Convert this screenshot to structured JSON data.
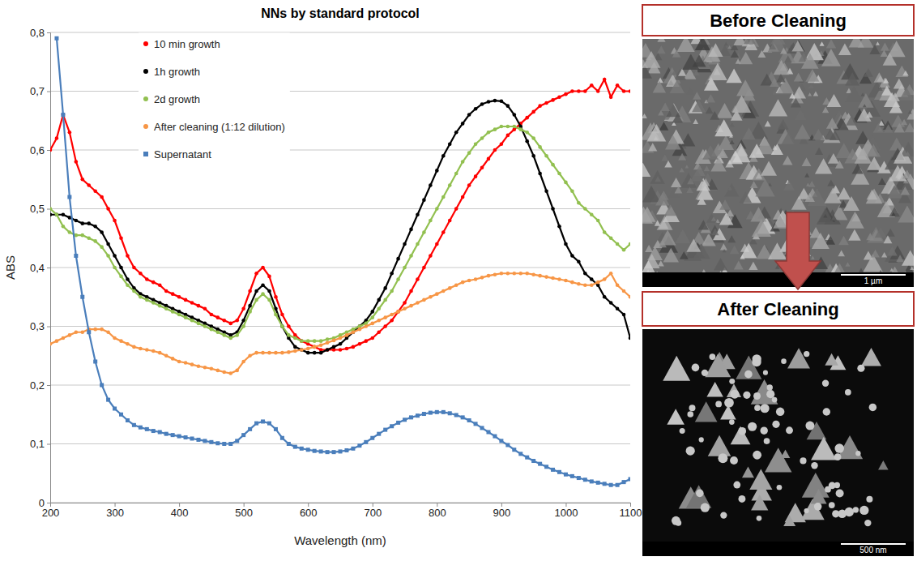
{
  "chart_data": {
    "type": "scatter",
    "title": "NNs by standard protocol",
    "x_label": "Wavelength (nm)",
    "y_label": "ABS",
    "x": [
      200,
      210,
      220,
      230,
      240,
      250,
      260,
      270,
      280,
      290,
      300,
      310,
      320,
      330,
      340,
      350,
      360,
      370,
      380,
      390,
      400,
      410,
      420,
      430,
      440,
      450,
      460,
      470,
      480,
      490,
      500,
      510,
      520,
      530,
      540,
      550,
      560,
      570,
      580,
      590,
      600,
      610,
      620,
      630,
      640,
      650,
      660,
      670,
      680,
      690,
      700,
      710,
      720,
      730,
      740,
      750,
      760,
      770,
      780,
      790,
      800,
      810,
      820,
      830,
      840,
      850,
      860,
      870,
      880,
      890,
      900,
      910,
      920,
      930,
      940,
      950,
      960,
      970,
      980,
      990,
      1000,
      1010,
      1020,
      1030,
      1040,
      1050,
      1060,
      1070,
      1080,
      1090,
      1100
    ],
    "series": [
      {
        "name": "10 min growth",
        "color": "#ff0000",
        "marker": "circle",
        "line_style": "solid",
        "values": [
          0.6,
          0.62,
          0.66,
          0.63,
          0.58,
          0.55,
          0.54,
          0.53,
          0.52,
          0.5,
          0.48,
          0.45,
          0.42,
          0.4,
          0.39,
          0.38,
          0.375,
          0.37,
          0.36,
          0.355,
          0.35,
          0.345,
          0.34,
          0.335,
          0.33,
          0.32,
          0.315,
          0.31,
          0.305,
          0.31,
          0.33,
          0.36,
          0.39,
          0.4,
          0.385,
          0.35,
          0.32,
          0.3,
          0.285,
          0.275,
          0.27,
          0.265,
          0.26,
          0.26,
          0.26,
          0.26,
          0.262,
          0.265,
          0.27,
          0.275,
          0.28,
          0.29,
          0.3,
          0.31,
          0.325,
          0.34,
          0.36,
          0.38,
          0.4,
          0.42,
          0.44,
          0.46,
          0.48,
          0.5,
          0.52,
          0.54,
          0.555,
          0.57,
          0.585,
          0.6,
          0.61,
          0.625,
          0.635,
          0.645,
          0.655,
          0.665,
          0.675,
          0.68,
          0.685,
          0.69,
          0.695,
          0.7,
          0.7,
          0.7,
          0.71,
          0.7,
          0.72,
          0.69,
          0.71,
          0.7,
          0.7
        ]
      },
      {
        "name": "1h growth",
        "color": "#000000",
        "marker": "circle",
        "line_style": "solid",
        "values": [
          0.49,
          0.49,
          0.49,
          0.485,
          0.48,
          0.475,
          0.475,
          0.47,
          0.46,
          0.44,
          0.42,
          0.4,
          0.38,
          0.365,
          0.355,
          0.35,
          0.345,
          0.34,
          0.335,
          0.33,
          0.325,
          0.32,
          0.315,
          0.31,
          0.305,
          0.3,
          0.295,
          0.29,
          0.285,
          0.29,
          0.31,
          0.335,
          0.36,
          0.37,
          0.36,
          0.33,
          0.3,
          0.28,
          0.265,
          0.26,
          0.255,
          0.255,
          0.255,
          0.26,
          0.265,
          0.27,
          0.28,
          0.29,
          0.3,
          0.31,
          0.325,
          0.345,
          0.365,
          0.39,
          0.415,
          0.44,
          0.465,
          0.49,
          0.515,
          0.54,
          0.565,
          0.59,
          0.61,
          0.63,
          0.645,
          0.66,
          0.67,
          0.678,
          0.682,
          0.684,
          0.683,
          0.675,
          0.66,
          0.64,
          0.615,
          0.59,
          0.56,
          0.53,
          0.5,
          0.47,
          0.44,
          0.42,
          0.41,
          0.39,
          0.38,
          0.37,
          0.35,
          0.34,
          0.33,
          0.32,
          0.28
        ]
      },
      {
        "name": "2d growth",
        "color": "#92c050",
        "marker": "circle",
        "line_style": "solid",
        "values": [
          0.5,
          0.49,
          0.47,
          0.46,
          0.455,
          0.455,
          0.45,
          0.445,
          0.435,
          0.42,
          0.4,
          0.385,
          0.37,
          0.36,
          0.35,
          0.345,
          0.34,
          0.335,
          0.33,
          0.325,
          0.32,
          0.315,
          0.31,
          0.305,
          0.3,
          0.295,
          0.29,
          0.285,
          0.28,
          0.285,
          0.3,
          0.325,
          0.345,
          0.355,
          0.345,
          0.32,
          0.3,
          0.285,
          0.28,
          0.275,
          0.275,
          0.275,
          0.275,
          0.278,
          0.28,
          0.285,
          0.29,
          0.295,
          0.3,
          0.305,
          0.315,
          0.33,
          0.345,
          0.36,
          0.38,
          0.4,
          0.42,
          0.44,
          0.46,
          0.48,
          0.5,
          0.52,
          0.54,
          0.56,
          0.58,
          0.595,
          0.61,
          0.62,
          0.63,
          0.635,
          0.64,
          0.64,
          0.64,
          0.635,
          0.63,
          0.62,
          0.605,
          0.59,
          0.575,
          0.56,
          0.545,
          0.53,
          0.51,
          0.5,
          0.49,
          0.48,
          0.46,
          0.45,
          0.44,
          0.43,
          0.44
        ]
      },
      {
        "name": "After cleaning (1:12 dilution)",
        "color": "#f79646",
        "marker": "circle",
        "line_style": "solid",
        "values": [
          0.27,
          0.275,
          0.28,
          0.285,
          0.29,
          0.29,
          0.295,
          0.295,
          0.295,
          0.29,
          0.28,
          0.275,
          0.27,
          0.265,
          0.262,
          0.26,
          0.258,
          0.255,
          0.25,
          0.245,
          0.24,
          0.238,
          0.235,
          0.232,
          0.23,
          0.228,
          0.225,
          0.222,
          0.22,
          0.225,
          0.24,
          0.25,
          0.255,
          0.255,
          0.255,
          0.255,
          0.255,
          0.256,
          0.258,
          0.26,
          0.262,
          0.265,
          0.268,
          0.272,
          0.276,
          0.28,
          0.285,
          0.29,
          0.295,
          0.3,
          0.305,
          0.31,
          0.315,
          0.32,
          0.325,
          0.33,
          0.335,
          0.34,
          0.345,
          0.35,
          0.355,
          0.36,
          0.365,
          0.37,
          0.375,
          0.378,
          0.38,
          0.383,
          0.386,
          0.388,
          0.39,
          0.39,
          0.39,
          0.39,
          0.39,
          0.388,
          0.386,
          0.384,
          0.382,
          0.38,
          0.378,
          0.375,
          0.372,
          0.37,
          0.37,
          0.375,
          0.38,
          0.39,
          0.37,
          0.36,
          0.35
        ]
      },
      {
        "name": "Supernatant",
        "color": "#4a7ebb",
        "marker": "square",
        "line_style": "solid",
        "values": [
          null,
          0.79,
          0.66,
          0.52,
          0.42,
          0.35,
          0.29,
          0.24,
          0.2,
          0.175,
          0.16,
          0.15,
          0.14,
          0.132,
          0.128,
          0.125,
          0.122,
          0.12,
          0.117,
          0.115,
          0.113,
          0.111,
          0.109,
          0.107,
          0.105,
          0.103,
          0.101,
          0.1,
          0.1,
          0.105,
          0.115,
          0.125,
          0.135,
          0.138,
          0.135,
          0.125,
          0.11,
          0.1,
          0.095,
          0.092,
          0.09,
          0.088,
          0.087,
          0.086,
          0.086,
          0.087,
          0.089,
          0.092,
          0.097,
          0.103,
          0.11,
          0.117,
          0.124,
          0.13,
          0.136,
          0.141,
          0.145,
          0.148,
          0.151,
          0.153,
          0.154,
          0.154,
          0.152,
          0.149,
          0.145,
          0.14,
          0.134,
          0.127,
          0.12,
          0.113,
          0.105,
          0.098,
          0.09,
          0.083,
          0.077,
          0.071,
          0.066,
          0.061,
          0.056,
          0.052,
          0.048,
          0.045,
          0.042,
          0.039,
          0.036,
          0.034,
          0.032,
          0.03,
          0.03,
          0.035,
          0.04
        ]
      }
    ],
    "xlim": [
      200,
      1100
    ],
    "xticks": [
      200,
      300,
      400,
      500,
      600,
      700,
      800,
      900,
      1000,
      1100
    ],
    "ylim": [
      0,
      0.8
    ],
    "yticks": [
      0,
      {
        "value": 0.1,
        "label": "0,1"
      },
      {
        "value": 0.2,
        "label": "0,2"
      },
      {
        "value": 0.3,
        "label": "0,3"
      },
      {
        "value": 0.4,
        "label": "0,4"
      },
      {
        "value": 0.5,
        "label": "0,5"
      },
      {
        "value": 0.6,
        "label": "0,6"
      },
      {
        "value": 0.7,
        "label": "0,7"
      },
      {
        "value": 0.8,
        "label": "0,8"
      }
    ],
    "grid": true,
    "legend": "upper left"
  },
  "panels": [
    {
      "title": "Before Cleaning",
      "scale_label": "1 µm"
    },
    {
      "title": "After Cleaning",
      "scale_label": "500 nm"
    }
  ]
}
